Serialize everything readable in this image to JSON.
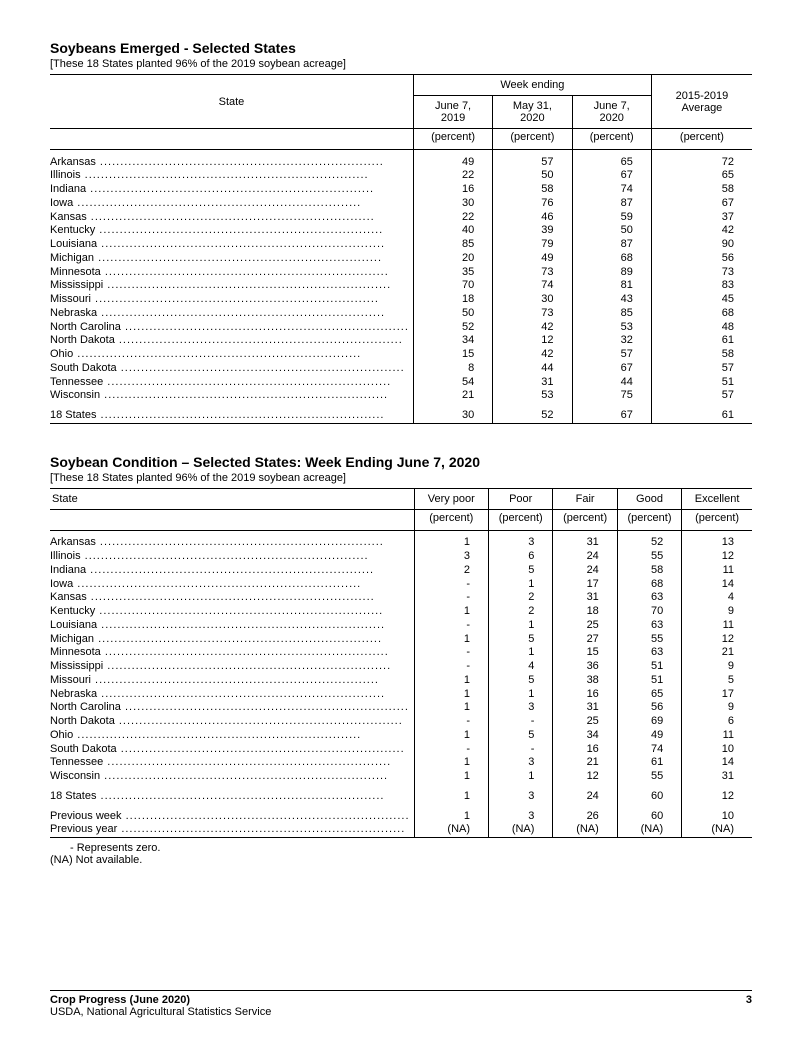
{
  "table1": {
    "title": "Soybeans Emerged - Selected States",
    "subtitle": "[These 18 States planted 96% of the 2019 soybean acreage]",
    "state_header": "State",
    "week_ending_header": "Week ending",
    "col_headers": [
      "June 7,\n2019",
      "May 31,\n2020",
      "June 7,\n2020"
    ],
    "avg_header": "2015-2019\nAverage",
    "unit": "(percent)",
    "rows": [
      {
        "state": "Arkansas",
        "v": [
          "49",
          "57",
          "65",
          "72"
        ]
      },
      {
        "state": "Illinois",
        "v": [
          "22",
          "50",
          "67",
          "65"
        ]
      },
      {
        "state": "Indiana",
        "v": [
          "16",
          "58",
          "74",
          "58"
        ]
      },
      {
        "state": "Iowa",
        "v": [
          "30",
          "76",
          "87",
          "67"
        ]
      },
      {
        "state": "Kansas",
        "v": [
          "22",
          "46",
          "59",
          "37"
        ]
      },
      {
        "state": "Kentucky",
        "v": [
          "40",
          "39",
          "50",
          "42"
        ]
      },
      {
        "state": "Louisiana",
        "v": [
          "85",
          "79",
          "87",
          "90"
        ]
      },
      {
        "state": "Michigan",
        "v": [
          "20",
          "49",
          "68",
          "56"
        ]
      },
      {
        "state": "Minnesota",
        "v": [
          "35",
          "73",
          "89",
          "73"
        ]
      },
      {
        "state": "Mississippi",
        "v": [
          "70",
          "74",
          "81",
          "83"
        ]
      },
      {
        "state": "Missouri",
        "v": [
          "18",
          "30",
          "43",
          "45"
        ]
      },
      {
        "state": "Nebraska",
        "v": [
          "50",
          "73",
          "85",
          "68"
        ]
      },
      {
        "state": "North Carolina",
        "v": [
          "52",
          "42",
          "53",
          "48"
        ]
      },
      {
        "state": "North Dakota",
        "v": [
          "34",
          "12",
          "32",
          "61"
        ]
      },
      {
        "state": "Ohio",
        "v": [
          "15",
          "42",
          "57",
          "58"
        ]
      },
      {
        "state": "South Dakota",
        "v": [
          "8",
          "44",
          "67",
          "57"
        ]
      },
      {
        "state": "Tennessee",
        "v": [
          "54",
          "31",
          "44",
          "51"
        ]
      },
      {
        "state": "Wisconsin",
        "v": [
          "21",
          "53",
          "75",
          "57"
        ]
      }
    ],
    "summary": {
      "state": "18 States",
      "v": [
        "30",
        "52",
        "67",
        "61"
      ]
    }
  },
  "table2": {
    "title": "Soybean Condition – Selected States: Week Ending June 7, 2020",
    "subtitle": "[These 18 States planted 96% of the 2019 soybean acreage]",
    "state_header": "State",
    "col_headers": [
      "Very poor",
      "Poor",
      "Fair",
      "Good",
      "Excellent"
    ],
    "unit": "(percent)",
    "rows": [
      {
        "state": "Arkansas",
        "v": [
          "1",
          "3",
          "31",
          "52",
          "13"
        ]
      },
      {
        "state": "Illinois",
        "v": [
          "3",
          "6",
          "24",
          "55",
          "12"
        ]
      },
      {
        "state": "Indiana",
        "v": [
          "2",
          "5",
          "24",
          "58",
          "11"
        ]
      },
      {
        "state": "Iowa",
        "v": [
          "-",
          "1",
          "17",
          "68",
          "14"
        ]
      },
      {
        "state": "Kansas",
        "v": [
          "-",
          "2",
          "31",
          "63",
          "4"
        ]
      },
      {
        "state": "Kentucky",
        "v": [
          "1",
          "2",
          "18",
          "70",
          "9"
        ]
      },
      {
        "state": "Louisiana",
        "v": [
          "-",
          "1",
          "25",
          "63",
          "11"
        ]
      },
      {
        "state": "Michigan",
        "v": [
          "1",
          "5",
          "27",
          "55",
          "12"
        ]
      },
      {
        "state": "Minnesota",
        "v": [
          "-",
          "1",
          "15",
          "63",
          "21"
        ]
      },
      {
        "state": "Mississippi",
        "v": [
          "-",
          "4",
          "36",
          "51",
          "9"
        ]
      },
      {
        "state": "Missouri",
        "v": [
          "1",
          "5",
          "38",
          "51",
          "5"
        ]
      },
      {
        "state": "Nebraska",
        "v": [
          "1",
          "1",
          "16",
          "65",
          "17"
        ]
      },
      {
        "state": "North Carolina",
        "v": [
          "1",
          "3",
          "31",
          "56",
          "9"
        ]
      },
      {
        "state": "North Dakota",
        "v": [
          "-",
          "-",
          "25",
          "69",
          "6"
        ]
      },
      {
        "state": "Ohio",
        "v": [
          "1",
          "5",
          "34",
          "49",
          "11"
        ]
      },
      {
        "state": "South Dakota",
        "v": [
          "-",
          "-",
          "16",
          "74",
          "10"
        ]
      },
      {
        "state": "Tennessee",
        "v": [
          "1",
          "3",
          "21",
          "61",
          "14"
        ]
      },
      {
        "state": "Wisconsin",
        "v": [
          "1",
          "1",
          "12",
          "55",
          "31"
        ]
      }
    ],
    "summary": {
      "state": "18 States",
      "v": [
        "1",
        "3",
        "24",
        "60",
        "12"
      ]
    },
    "prev_week": {
      "state": "Previous week",
      "v": [
        "1",
        "3",
        "26",
        "60",
        "10"
      ]
    },
    "prev_year": {
      "state": "Previous year",
      "v": [
        "(NA)",
        "(NA)",
        "(NA)",
        "(NA)",
        "(NA)"
      ]
    },
    "footnote1": "-  Represents zero.",
    "footnote2": "(NA) Not available."
  },
  "footer": {
    "line1": "Crop Progress (June 2020)",
    "line2": "USDA, National Agricultural Statistics Service",
    "page": "3"
  }
}
